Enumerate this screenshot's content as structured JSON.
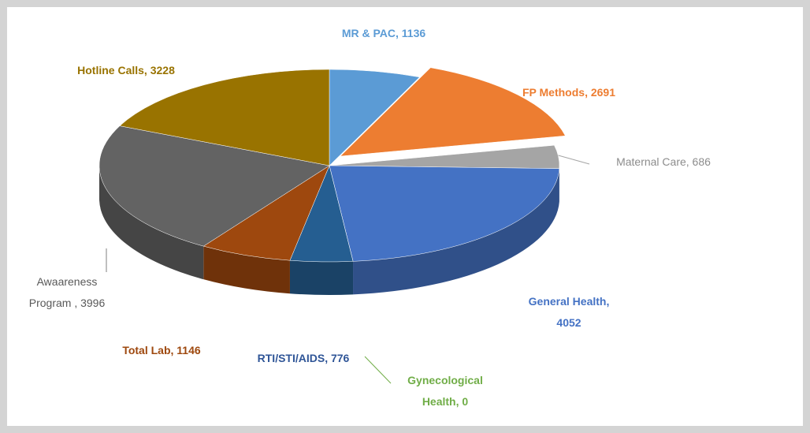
{
  "chart_data": {
    "type": "pie",
    "categories": [
      "MR & PAC",
      "FP Methods",
      "Maternal Care",
      "General Health",
      "Gynecological Health",
      "RTI/STI/AIDS",
      "Total Lab",
      "Awaareness Program",
      "Hotline Calls"
    ],
    "values": [
      1136,
      2691,
      686,
      4052,
      0,
      776,
      1146,
      3996,
      3228
    ],
    "value_labels": [
      "MR & PAC, 1136",
      "FP Methods, 2691",
      "Maternal Care, 686",
      "General Health,\n4052",
      "Gynecological\nHealth, 0",
      "RTI/STI/AIDS, 776",
      "Total Lab, 1146",
      "Awaareness\nProgram , 3996",
      "Hotline Calls, 3228"
    ],
    "colors": [
      "#5b9bd5",
      "#ed7d31",
      "#a5a5a5",
      "#4472c4",
      "#70ad47",
      "#255e91",
      "#9e480e",
      "#636363",
      "#997300"
    ],
    "label_colors": [
      "#5b9bd5",
      "#ed7d31",
      "#8c8c8c",
      "#4472c4",
      "#70ad47",
      "#2f5597",
      "#9e480e",
      "#595959",
      "#997300"
    ]
  }
}
